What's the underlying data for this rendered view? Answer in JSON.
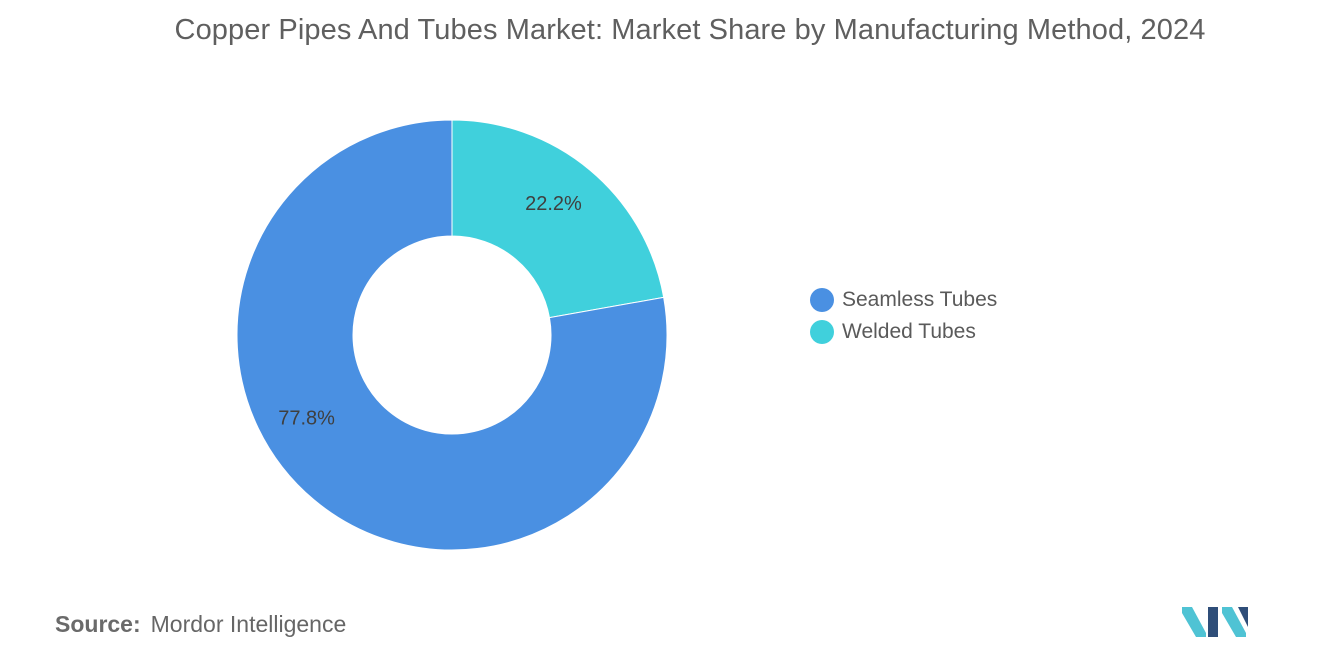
{
  "title": "Copper Pipes And Tubes Market: Market Share by Manufacturing Method, 2024",
  "chart_data": {
    "type": "pie",
    "subtype": "donut",
    "title": "Copper Pipes And Tubes Market: Market Share by Manufacturing Method, 2024",
    "categories": [
      "Welded Tubes",
      "Seamless Tubes"
    ],
    "values": [
      22.2,
      77.8
    ],
    "value_labels": [
      "22.2%",
      "77.8%"
    ],
    "unit": "%",
    "colors": [
      "#40d0dc",
      "#4a90e2"
    ],
    "legend": {
      "placement": "right",
      "entries": [
        "Seamless Tubes",
        "Welded Tubes"
      ],
      "colors": [
        "#4a90e2",
        "#40d0dc"
      ]
    }
  },
  "source": {
    "prefix": "Source:",
    "text": "Mordor Intelligence"
  },
  "logo": {
    "icon": "mordor-intelligence-logo",
    "colors": [
      "#2f4e79",
      "#4fc3d4"
    ]
  }
}
